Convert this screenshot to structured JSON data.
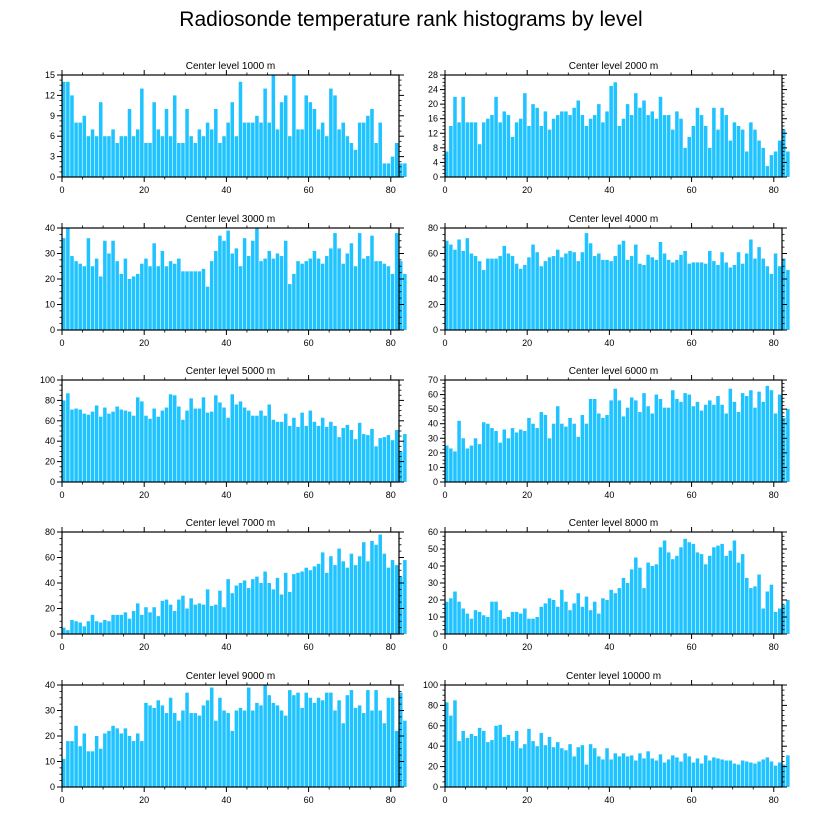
{
  "title": "Radiosonde temperature rank histograms by level",
  "colors": {
    "bar": "#1ec3ff",
    "bar_edge": "#ffffff",
    "axis": "#000000"
  },
  "chart_data": [
    {
      "type": "bar",
      "title": "Center level 1000 m",
      "xlim": [
        0,
        82
      ],
      "ylim": [
        0,
        15
      ],
      "xticks": [
        0,
        20,
        40,
        60,
        80
      ],
      "yticks": [
        0,
        3,
        6,
        9,
        12,
        15
      ],
      "values": [
        14,
        14,
        12,
        8,
        8,
        9,
        6,
        7,
        6,
        11,
        6,
        6,
        7,
        5,
        6,
        6,
        10,
        6,
        7,
        13,
        5,
        5,
        11,
        7,
        6,
        10,
        6,
        12,
        5,
        5,
        10,
        6,
        5,
        7,
        6,
        8,
        7,
        10,
        5,
        6,
        8,
        11,
        6,
        14,
        8,
        8,
        8,
        9,
        8,
        13,
        8,
        15,
        7,
        11,
        12,
        6,
        15,
        7,
        7,
        12,
        11,
        10,
        7,
        8,
        6,
        13,
        12,
        7,
        8,
        6,
        5,
        4,
        8,
        8,
        9,
        10,
        5,
        8,
        2,
        2,
        3,
        5,
        2,
        2
      ]
    },
    {
      "type": "bar",
      "title": "Center level 2000 m",
      "xlim": [
        0,
        82
      ],
      "ylim": [
        0,
        28
      ],
      "xticks": [
        0,
        20,
        40,
        60,
        80
      ],
      "yticks": [
        0,
        4,
        8,
        12,
        16,
        20,
        24,
        28
      ],
      "values": [
        7,
        14,
        22,
        15,
        22,
        15,
        15,
        15,
        9,
        15,
        16,
        17,
        22,
        15,
        18,
        17,
        11,
        15,
        16,
        23,
        14,
        20,
        19,
        14,
        18,
        13,
        16,
        17,
        18,
        18,
        17,
        19,
        21,
        17,
        14,
        16,
        17,
        20,
        15,
        18,
        25,
        26,
        14,
        16,
        20,
        17,
        23,
        19,
        21,
        17,
        18,
        16,
        22,
        17,
        17,
        13,
        18,
        16,
        8,
        11,
        14,
        19,
        17,
        14,
        8,
        19,
        13,
        19,
        17,
        10,
        15,
        14,
        13,
        7,
        15,
        13,
        10,
        8,
        3,
        6,
        7,
        10,
        13,
        7
      ]
    },
    {
      "type": "bar",
      "title": "Center level 3000 m",
      "xlim": [
        0,
        82
      ],
      "ylim": [
        0,
        40
      ],
      "xticks": [
        0,
        20,
        40,
        60,
        80
      ],
      "yticks": [
        0,
        10,
        20,
        30,
        40
      ],
      "values": [
        36,
        40,
        29,
        27,
        26,
        25,
        36,
        25,
        28,
        21,
        35,
        30,
        35,
        27,
        22,
        28,
        20,
        21,
        22,
        26,
        28,
        25,
        34,
        25,
        31,
        25,
        27,
        26,
        28,
        23,
        23,
        23,
        23,
        23,
        24,
        17,
        27,
        31,
        37,
        35,
        39,
        30,
        32,
        25,
        36,
        29,
        35,
        40,
        27,
        28,
        31,
        28,
        30,
        29,
        35,
        18,
        22,
        27,
        26,
        27,
        28,
        31,
        28,
        26,
        29,
        32,
        38,
        32,
        26,
        30,
        34,
        25,
        38,
        28,
        29,
        37,
        27,
        27,
        26,
        25,
        22,
        38,
        27,
        22
      ]
    },
    {
      "type": "bar",
      "title": "Center level 4000 m",
      "xlim": [
        0,
        82
      ],
      "ylim": [
        0,
        80
      ],
      "xticks": [
        0,
        20,
        40,
        60,
        80
      ],
      "yticks": [
        0,
        20,
        40,
        60,
        80
      ],
      "values": [
        70,
        67,
        63,
        71,
        62,
        72,
        60,
        58,
        54,
        47,
        56,
        56,
        56,
        58,
        66,
        60,
        58,
        52,
        48,
        51,
        57,
        67,
        61,
        50,
        54,
        57,
        58,
        63,
        57,
        60,
        62,
        61,
        54,
        61,
        76,
        68,
        58,
        60,
        55,
        55,
        54,
        58,
        67,
        70,
        55,
        58,
        67,
        52,
        51,
        59,
        57,
        55,
        69,
        60,
        55,
        53,
        55,
        59,
        62,
        52,
        53,
        53,
        53,
        52,
        62,
        54,
        51,
        61,
        53,
        49,
        51,
        61,
        52,
        60,
        71,
        56,
        65,
        56,
        50,
        44,
        60,
        50,
        56,
        47
      ]
    },
    {
      "type": "bar",
      "title": "Center level 5000 m",
      "xlim": [
        0,
        82
      ],
      "ylim": [
        0,
        100
      ],
      "xticks": [
        0,
        20,
        40,
        60,
        80
      ],
      "yticks": [
        0,
        20,
        40,
        60,
        80,
        100
      ],
      "values": [
        80,
        87,
        71,
        72,
        71,
        67,
        66,
        69,
        75,
        64,
        73,
        67,
        69,
        74,
        71,
        70,
        69,
        65,
        83,
        79,
        65,
        62,
        72,
        64,
        70,
        73,
        86,
        85,
        74,
        61,
        70,
        82,
        72,
        72,
        83,
        68,
        69,
        85,
        78,
        73,
        63,
        86,
        76,
        79,
        73,
        70,
        65,
        65,
        70,
        65,
        76,
        61,
        59,
        59,
        67,
        55,
        63,
        54,
        68,
        55,
        70,
        59,
        55,
        63,
        54,
        59,
        55,
        44,
        53,
        56,
        51,
        42,
        58,
        47,
        46,
        52,
        35,
        43,
        44,
        46,
        41,
        51,
        30,
        47
      ]
    },
    {
      "type": "bar",
      "title": "Center level 6000 m",
      "xlim": [
        0,
        82
      ],
      "ylim": [
        0,
        70
      ],
      "xticks": [
        0,
        20,
        40,
        60,
        80
      ],
      "yticks": [
        0,
        10,
        20,
        30,
        40,
        50,
        60,
        70
      ],
      "values": [
        25,
        23,
        21,
        42,
        30,
        23,
        25,
        30,
        26,
        41,
        40,
        37,
        35,
        27,
        36,
        30,
        37,
        34,
        36,
        35,
        44,
        40,
        37,
        48,
        46,
        30,
        40,
        52,
        40,
        38,
        44,
        40,
        31,
        46,
        40,
        57,
        57,
        47,
        44,
        46,
        56,
        64,
        56,
        45,
        51,
        58,
        56,
        48,
        61,
        52,
        47,
        60,
        57,
        51,
        51,
        63,
        57,
        55,
        61,
        60,
        52,
        55,
        49,
        53,
        56,
        53,
        59,
        53,
        47,
        64,
        55,
        48,
        61,
        59,
        63,
        51,
        62,
        55,
        66,
        63,
        47,
        60,
        44,
        50
      ]
    },
    {
      "type": "bar",
      "title": "Center level 7000 m",
      "xlim": [
        0,
        82
      ],
      "ylim": [
        0,
        80
      ],
      "xticks": [
        0,
        20,
        40,
        60,
        80
      ],
      "yticks": [
        0,
        20,
        40,
        60,
        80
      ],
      "values": [
        5,
        3,
        11,
        10,
        9,
        6,
        10,
        15,
        10,
        9,
        11,
        10,
        15,
        15,
        15,
        17,
        12,
        18,
        24,
        15,
        21,
        17,
        21,
        14,
        26,
        27,
        23,
        18,
        27,
        30,
        20,
        28,
        23,
        24,
        23,
        35,
        22,
        23,
        34,
        21,
        43,
        32,
        38,
        40,
        42,
        36,
        43,
        45,
        40,
        49,
        40,
        35,
        44,
        31,
        48,
        33,
        47,
        48,
        49,
        52,
        50,
        53,
        55,
        64,
        48,
        61,
        54,
        67,
        57,
        52,
        63,
        54,
        61,
        72,
        57,
        73,
        70,
        78,
        63,
        52,
        58,
        54,
        45,
        58
      ]
    },
    {
      "type": "bar",
      "title": "Center level 8000 m",
      "xlim": [
        0,
        82
      ],
      "ylim": [
        0,
        60
      ],
      "xticks": [
        0,
        20,
        40,
        60,
        80
      ],
      "yticks": [
        0,
        10,
        20,
        30,
        40,
        50,
        60
      ],
      "values": [
        19,
        21,
        25,
        19,
        15,
        12,
        9,
        14,
        13,
        11,
        10,
        19,
        19,
        14,
        9,
        10,
        13,
        13,
        12,
        15,
        9,
        9,
        10,
        16,
        18,
        21,
        20,
        16,
        26,
        19,
        14,
        18,
        24,
        16,
        22,
        14,
        19,
        12,
        21,
        20,
        26,
        24,
        27,
        33,
        30,
        38,
        45,
        39,
        27,
        42,
        40,
        41,
        51,
        55,
        48,
        44,
        46,
        51,
        56,
        54,
        53,
        48,
        47,
        41,
        46,
        51,
        52,
        53,
        46,
        49,
        55,
        42,
        47,
        33,
        27,
        28,
        35,
        15,
        25,
        29,
        13,
        15,
        17,
        20
      ]
    },
    {
      "type": "bar",
      "title": "Center level 9000 m",
      "xlim": [
        0,
        82
      ],
      "ylim": [
        0,
        40
      ],
      "xticks": [
        0,
        20,
        40,
        60,
        80
      ],
      "yticks": [
        0,
        10,
        20,
        30,
        40
      ],
      "values": [
        11,
        18,
        18,
        24,
        16,
        21,
        14,
        14,
        20,
        15,
        21,
        22,
        24,
        23,
        21,
        23,
        20,
        18,
        21,
        18,
        33,
        32,
        31,
        34,
        32,
        29,
        35,
        29,
        26,
        30,
        37,
        29,
        29,
        28,
        32,
        34,
        39,
        26,
        35,
        30,
        29,
        22,
        30,
        31,
        30,
        39,
        30,
        33,
        32,
        40,
        36,
        33,
        32,
        30,
        28,
        38,
        36,
        37,
        31,
        37,
        35,
        33,
        35,
        34,
        37,
        37,
        30,
        34,
        25,
        36,
        38,
        31,
        32,
        29,
        38,
        30,
        38,
        30,
        25,
        35,
        35,
        22,
        37,
        26
      ]
    },
    {
      "type": "bar",
      "title": "Center level 10000 m",
      "xlim": [
        0,
        82
      ],
      "ylim": [
        0,
        100
      ],
      "xticks": [
        0,
        20,
        40,
        60,
        80
      ],
      "yticks": [
        0,
        20,
        40,
        60,
        80,
        100
      ],
      "values": [
        83,
        70,
        85,
        45,
        55,
        48,
        52,
        50,
        58,
        55,
        44,
        46,
        60,
        61,
        49,
        51,
        45,
        55,
        38,
        42,
        57,
        45,
        40,
        53,
        41,
        49,
        39,
        44,
        38,
        36,
        42,
        30,
        39,
        41,
        22,
        42,
        38,
        30,
        27,
        38,
        27,
        33,
        30,
        33,
        30,
        31,
        26,
        33,
        28,
        35,
        28,
        26,
        32,
        24,
        27,
        31,
        29,
        25,
        33,
        30,
        24,
        28,
        23,
        31,
        26,
        29,
        28,
        27,
        26,
        26,
        23,
        22,
        26,
        25,
        24,
        23,
        25,
        27,
        29,
        25,
        21,
        24,
        22,
        31
      ]
    }
  ]
}
